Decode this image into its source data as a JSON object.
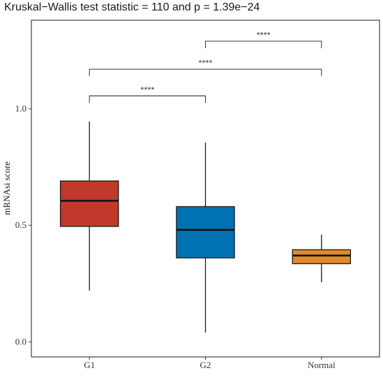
{
  "chart_data": {
    "type": "box",
    "title": "Kruskal−Wallis test statistic = 110 and p = 1.39e−24",
    "xlabel": "",
    "ylabel": "mRNAsi score",
    "ylim": [
      -0.065,
      1.38
    ],
    "yticks": [
      0.0,
      0.5,
      1.0
    ],
    "ytick_labels": [
      "0.0",
      "0.5",
      "1.0"
    ],
    "grid": false,
    "categories": [
      "G1",
      "G2",
      "Normal"
    ],
    "boxes": [
      {
        "name": "G1",
        "min": 0.22,
        "q1": 0.495,
        "median": 0.605,
        "q3": 0.69,
        "max": 0.945,
        "color": "#c0392b"
      },
      {
        "name": "G2",
        "min": 0.04,
        "q1": 0.36,
        "median": 0.48,
        "q3": 0.58,
        "max": 0.855,
        "color": "#0072b2"
      },
      {
        "name": "Normal",
        "min": 0.255,
        "q1": 0.335,
        "median": 0.37,
        "q3": 0.395,
        "max": 0.46,
        "color": "#e08a2c"
      }
    ],
    "comparisons": [
      {
        "from": "G1",
        "to": "G2",
        "y": 1.055,
        "label": "****"
      },
      {
        "from": "G1",
        "to": "Normal",
        "y": 1.17,
        "label": "****"
      },
      {
        "from": "G2",
        "to": "Normal",
        "y": 1.29,
        "label": "****"
      }
    ]
  }
}
